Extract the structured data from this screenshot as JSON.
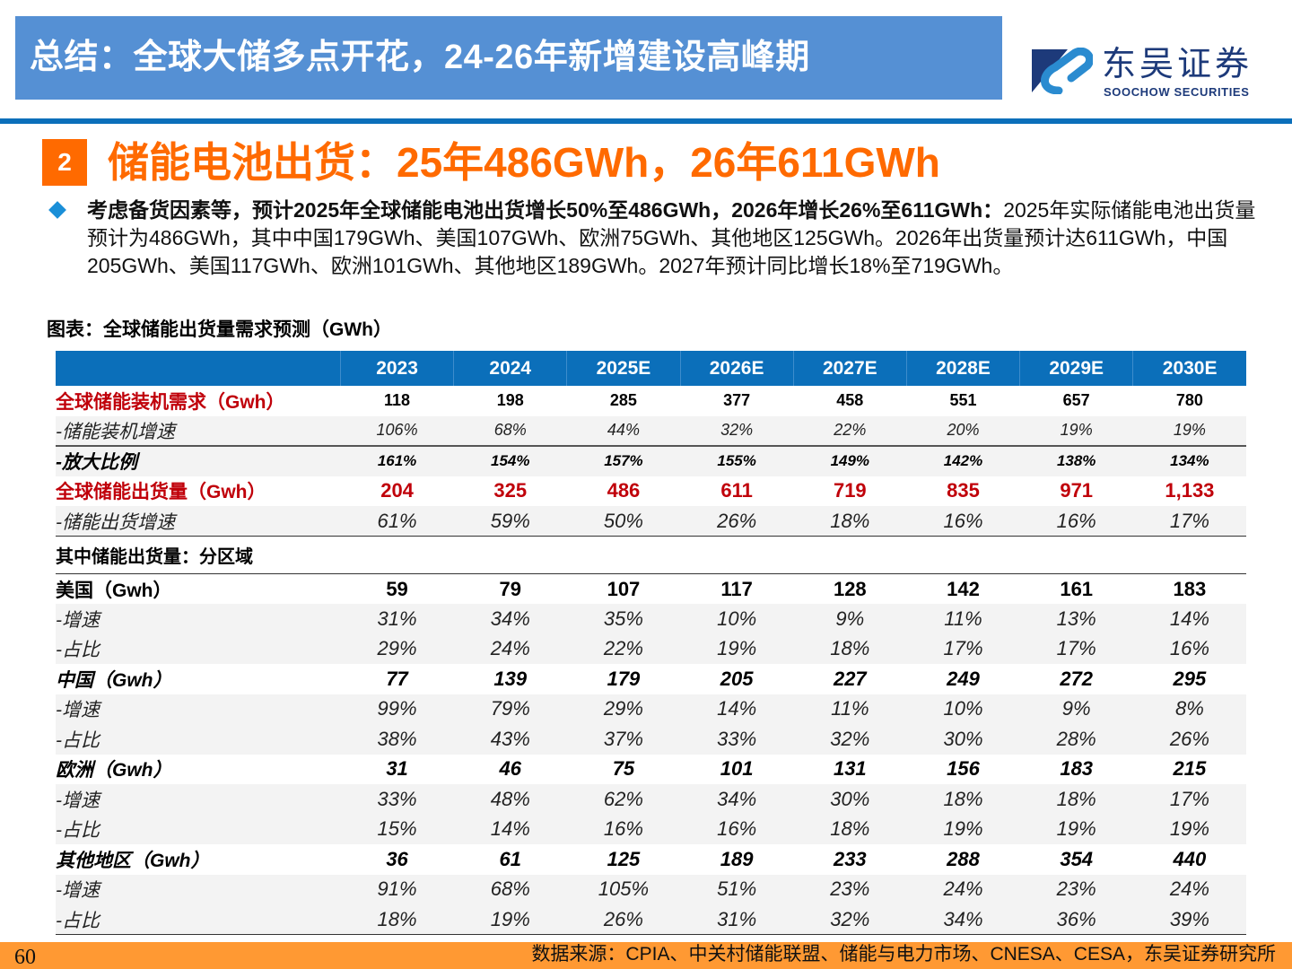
{
  "header": {
    "title": "总结：全球大储多点开花，24-26年新增建设高峰期",
    "logo_cn": "东吴证券",
    "logo_en": "SOOCHOW SECURITIES",
    "colors": {
      "title_bg": "#5590d4",
      "rule": "#0b6fba",
      "logo": "#1d3a7a"
    }
  },
  "section": {
    "number": "2",
    "title": "储能电池出货：25年486GWh，26年611GWh",
    "accent": "#ff6a00"
  },
  "bullet": {
    "bold_text": "考虑备货因素等，预计2025年全球储能电池出货增长50%至486GWh，2026年增长26%至611GWh：",
    "body_text": "2025年实际储能电池出货量预计为486GWh，其中中国179GWh、美国107GWh、欧洲75GWh、其他地区125GWh。2026年出货量预计达611GWh，中国205GWh、美国117GWh、欧洲101GWh、其他地区189GWh。2027年预计同比增长18%至719GWh。"
  },
  "caption": "图表：全球储能出货量需求预测（GWh）",
  "table": {
    "columns": [
      "",
      "2023",
      "2024",
      "2025E",
      "2026E",
      "2027E",
      "2028E",
      "2029E",
      "2030E"
    ],
    "rows": [
      {
        "label": "全球储能装机需求（Gwh）",
        "values": [
          "118",
          "198",
          "285",
          "377",
          "458",
          "551",
          "657",
          "780"
        ]
      },
      {
        "label": "-储能装机增速",
        "values": [
          "106%",
          "68%",
          "44%",
          "32%",
          "22%",
          "20%",
          "19%",
          "19%"
        ]
      },
      {
        "label": "-放大比例",
        "values": [
          "161%",
          "154%",
          "157%",
          "155%",
          "149%",
          "142%",
          "138%",
          "134%"
        ]
      },
      {
        "label": "全球储能出货量（Gwh）",
        "values": [
          "204",
          "325",
          "486",
          "611",
          "719",
          "835",
          "971",
          "1,133"
        ]
      },
      {
        "label": "-储能出货增速",
        "values": [
          "61%",
          "59%",
          "50%",
          "26%",
          "18%",
          "16%",
          "16%",
          "17%"
        ]
      },
      {
        "label": "其中储能出货量：分区域",
        "values": [
          "",
          "",
          "",
          "",
          "",
          "",
          "",
          ""
        ]
      },
      {
        "label": "美国（Gwh）",
        "values": [
          "59",
          "79",
          "107",
          "117",
          "128",
          "142",
          "161",
          "183"
        ]
      },
      {
        "label": "-增速",
        "values": [
          "31%",
          "34%",
          "35%",
          "10%",
          "9%",
          "11%",
          "13%",
          "14%"
        ]
      },
      {
        "label": "-占比",
        "values": [
          "29%",
          "24%",
          "22%",
          "19%",
          "18%",
          "17%",
          "17%",
          "16%"
        ]
      },
      {
        "label": "中国（Gwh）",
        "values": [
          "77",
          "139",
          "179",
          "205",
          "227",
          "249",
          "272",
          "295"
        ]
      },
      {
        "label": "-增速",
        "values": [
          "99%",
          "79%",
          "29%",
          "14%",
          "11%",
          "10%",
          "9%",
          "8%"
        ]
      },
      {
        "label": "-占比",
        "values": [
          "38%",
          "43%",
          "37%",
          "33%",
          "32%",
          "30%",
          "28%",
          "26%"
        ]
      },
      {
        "label": "欧洲（Gwh）",
        "values": [
          "31",
          "46",
          "75",
          "101",
          "131",
          "156",
          "183",
          "215"
        ]
      },
      {
        "label": "-增速",
        "values": [
          "33%",
          "48%",
          "62%",
          "34%",
          "30%",
          "18%",
          "18%",
          "17%"
        ]
      },
      {
        "label": "-占比",
        "values": [
          "15%",
          "14%",
          "16%",
          "16%",
          "18%",
          "19%",
          "19%",
          "19%"
        ]
      },
      {
        "label": "其他地区（Gwh）",
        "values": [
          "36",
          "61",
          "125",
          "189",
          "233",
          "288",
          "354",
          "440"
        ]
      },
      {
        "label": "-增速",
        "values": [
          "91%",
          "68%",
          "105%",
          "51%",
          "23%",
          "24%",
          "23%",
          "24%"
        ]
      },
      {
        "label": "-占比",
        "values": [
          "18%",
          "19%",
          "26%",
          "31%",
          "32%",
          "34%",
          "36%",
          "39%"
        ]
      }
    ],
    "colors": {
      "header_bg": "#0b6fba",
      "highlight": "#c0000a",
      "shade": "#f3f3f3"
    }
  },
  "footer": {
    "page_number": "60",
    "source": "数据来源：CPIA、中关村储能联盟、储能与电力市场、CNESA、CESA，东吴证券研究所",
    "bg": "#ff9933"
  }
}
